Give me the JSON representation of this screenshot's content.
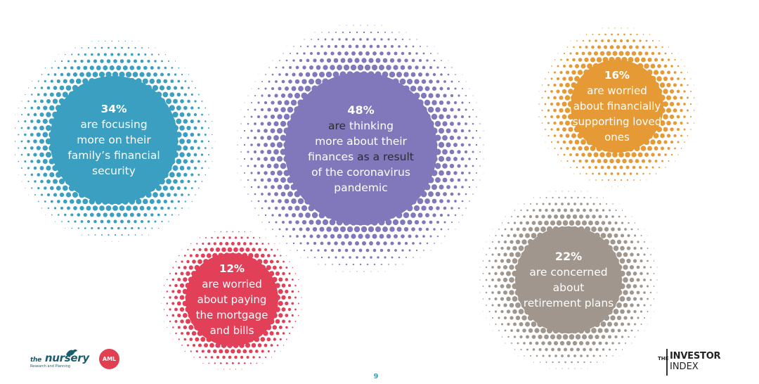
{
  "stats": [
    {
      "id": "family",
      "percent": "34%",
      "color": "#3a9fc0",
      "lines": [
        "are focusing",
        "more on their",
        "family’s financial",
        "security"
      ]
    },
    {
      "id": "pandemic",
      "percent": "48%",
      "color": "#8078bb",
      "lines": [
        {
          "dark": "are",
          "light": " thinking"
        },
        "more about their",
        {
          "light": "finances",
          "dark": " as a result"
        },
        "of the coronavirus",
        "pandemic"
      ]
    },
    {
      "id": "loved",
      "percent": "16%",
      "color": "#e59a35",
      "lines": [
        "are worried",
        "about financially",
        "supporting loved",
        "ones"
      ]
    },
    {
      "id": "retire",
      "percent": "22%",
      "color": "#a0968e",
      "lines": [
        "are concerned",
        "about",
        "retirement plans"
      ]
    },
    {
      "id": "mortgage",
      "percent": "12%",
      "color": "#e24058",
      "lines": [
        "are worried",
        "about paying",
        "the mortgage",
        "and bills"
      ]
    }
  ],
  "footer": {
    "nursery_logo": {
      "the": "the",
      "word": "nursery",
      "sub": "Research and Planning"
    },
    "aml_logo": "AML",
    "page_number": "9",
    "investor_index_logo": {
      "the": "THE",
      "investor": "INVESTOR",
      "index": "INDEX"
    }
  }
}
